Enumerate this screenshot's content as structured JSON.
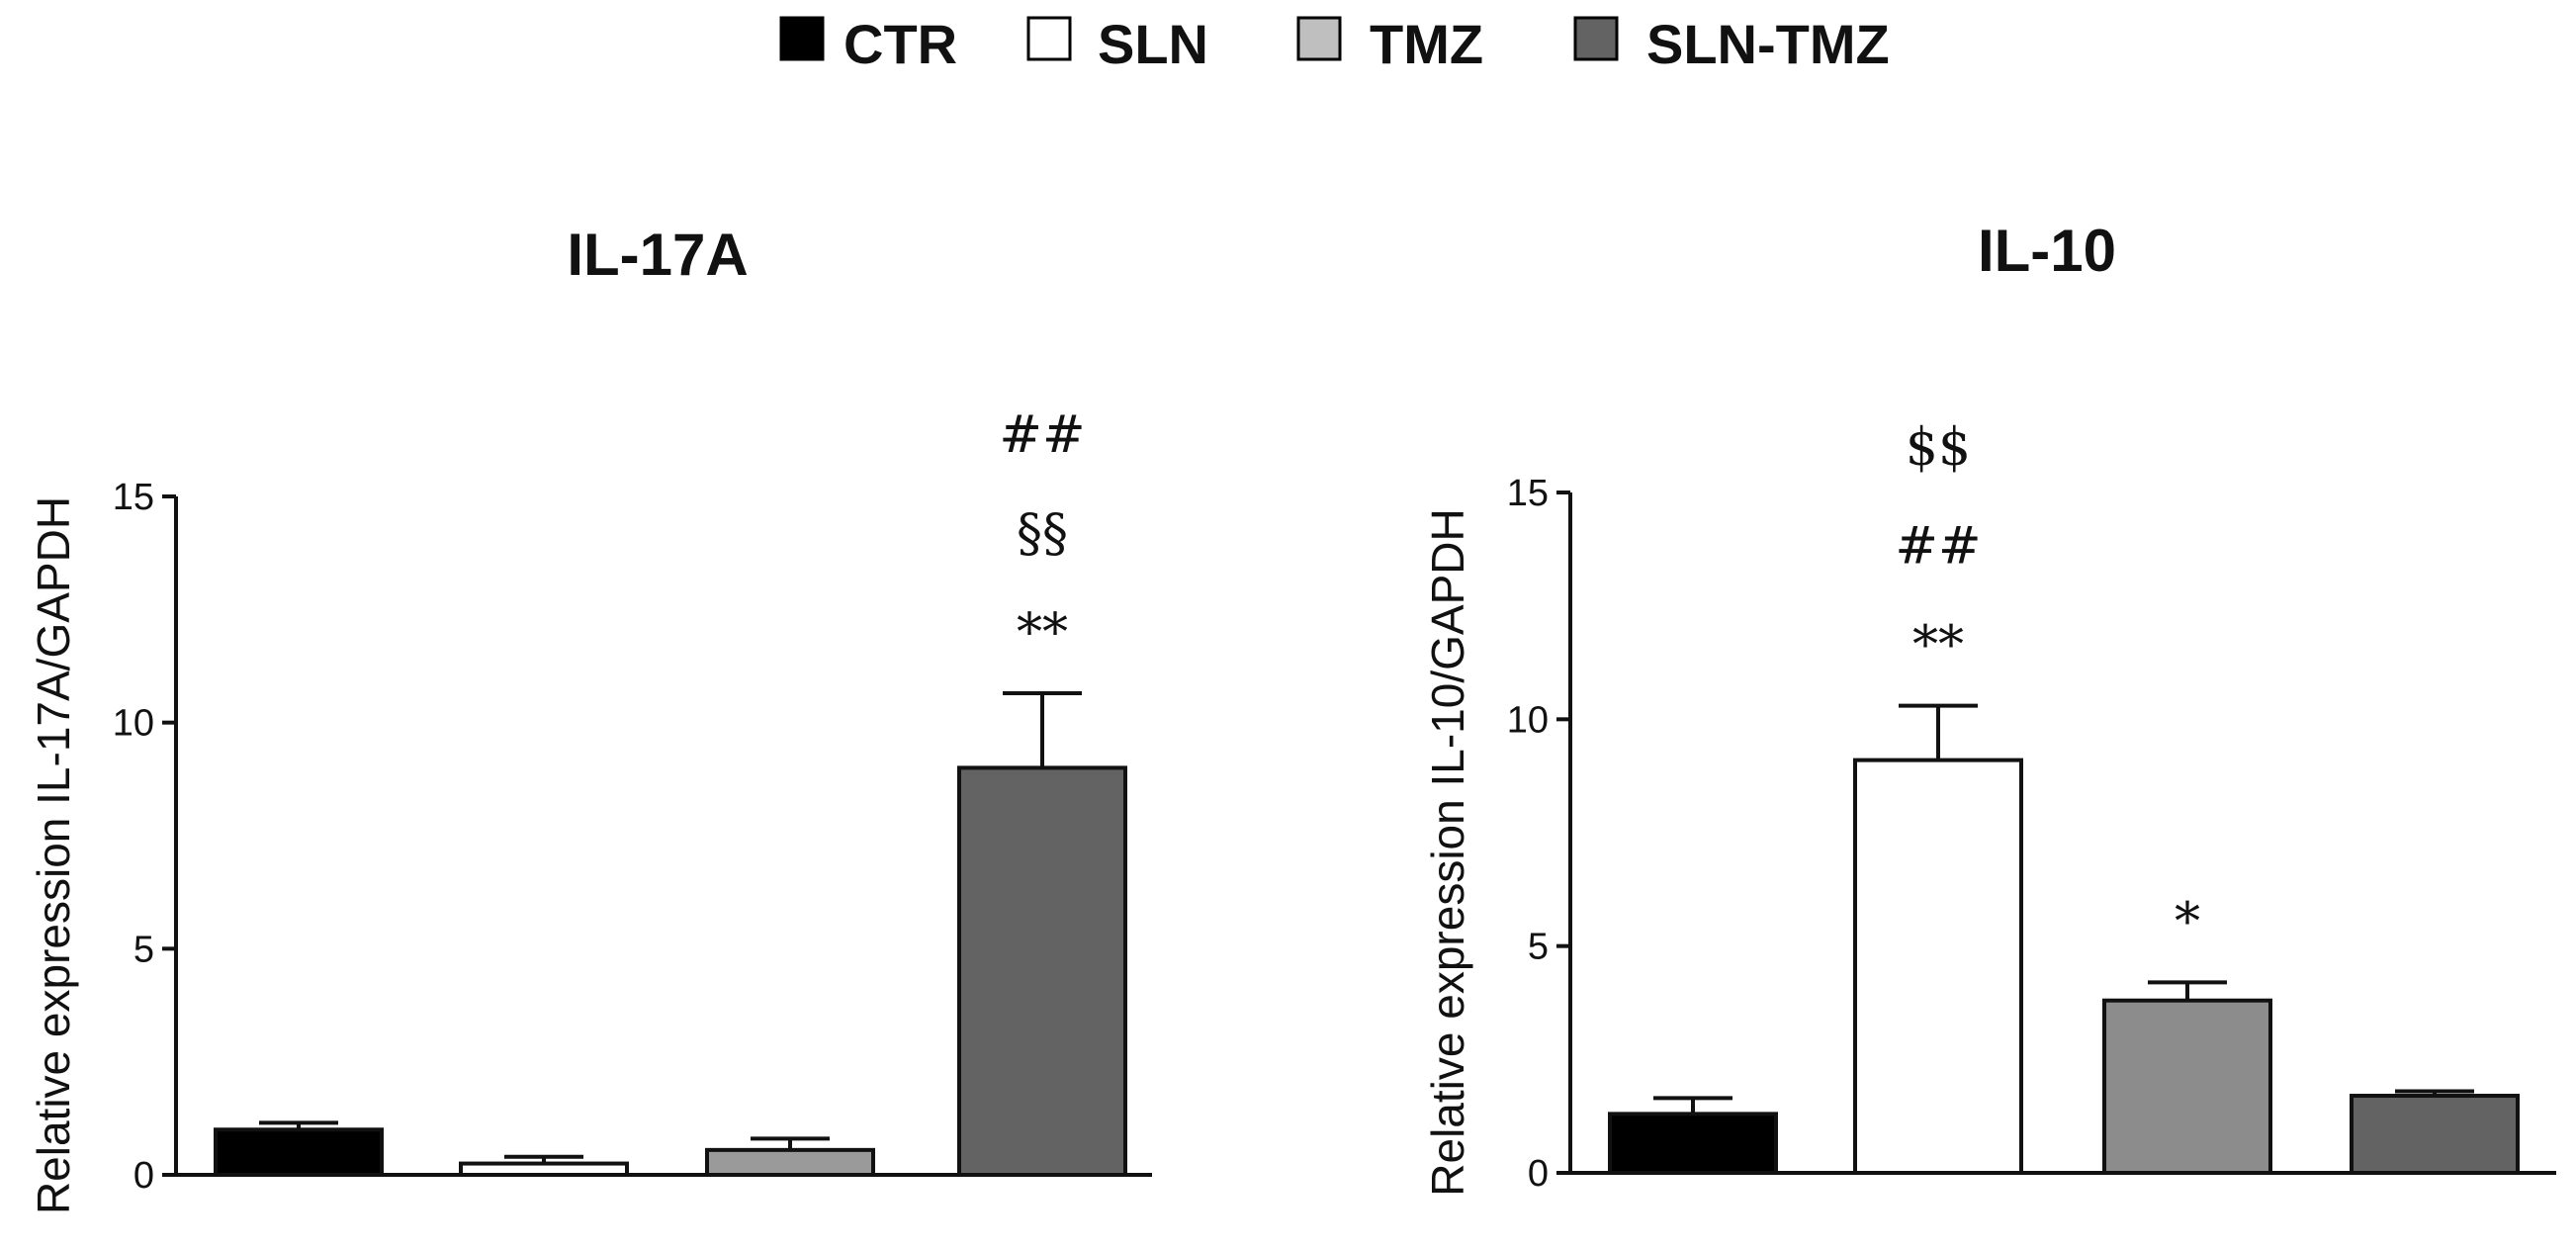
{
  "legend": [
    {
      "label": "CTR",
      "color": "#000000"
    },
    {
      "label": "SLN",
      "color": "#ffffff"
    },
    {
      "label": "TMZ",
      "color": "#bfbfbf"
    },
    {
      "label": "SLN-TMZ",
      "color": "#636363"
    }
  ],
  "chart_data": [
    {
      "type": "bar",
      "title": "IL-17A",
      "ylabel": "Relative expression IL-17A/GAPDH",
      "xlabel": "",
      "ylim": [
        0,
        15
      ],
      "yticks": [
        "0",
        "5",
        "10",
        "15"
      ],
      "categories": [
        "CTR",
        "SLN",
        "TMZ",
        "SLN-TMZ"
      ],
      "values": [
        1.0,
        0.25,
        0.55,
        9.0
      ],
      "errors": [
        0.15,
        0.15,
        0.25,
        1.65
      ],
      "bar_colors": [
        "#000000",
        "#ffffff",
        "#9a9a9a",
        "#636363"
      ],
      "annotations": [
        [],
        [],
        [],
        [
          "**",
          "§§",
          "##"
        ]
      ]
    },
    {
      "type": "bar",
      "title": "IL-10",
      "ylabel": "Relative expression IL-10/GAPDH",
      "xlabel": "",
      "ylim": [
        0,
        15
      ],
      "yticks": [
        "0",
        "5",
        "10",
        "15"
      ],
      "categories": [
        "CTR",
        "SLN",
        "TMZ",
        "SLN-TMZ"
      ],
      "values": [
        1.3,
        9.1,
        3.8,
        1.7
      ],
      "errors": [
        0.35,
        1.2,
        0.4,
        0.1
      ],
      "bar_colors": [
        "#000000",
        "#ffffff",
        "#8c8c8c",
        "#636363"
      ],
      "annotations": [
        [],
        [
          "**",
          "##",
          "$$"
        ],
        [
          "*"
        ],
        []
      ]
    }
  ]
}
